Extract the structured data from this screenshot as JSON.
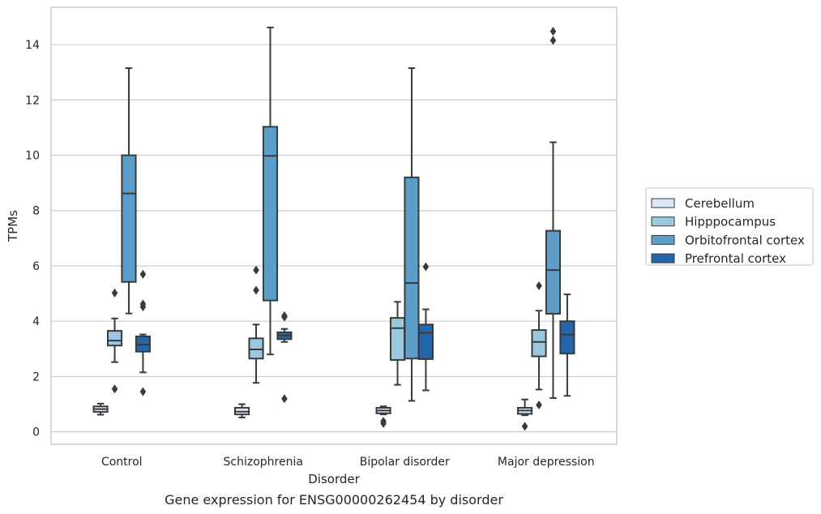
{
  "caption": "Gene expression for ENSG00000262454 by disorder",
  "colors": {
    "Cerebellum": "#dbe9f6",
    "Hipppocampus": "#9ac8e0",
    "Orbitofrontal cortex": "#5a9ec9",
    "Prefrontal cortex": "#2565aa",
    "line": "#3a3a3a",
    "grid": "#cccccc",
    "frame": "#cccccc"
  },
  "chart_data": {
    "type": "box",
    "xlabel": "Disorder",
    "ylabel": "TPMs",
    "ylim": [
      -0.45,
      15.35
    ],
    "yticks": [
      0,
      2,
      4,
      6,
      8,
      10,
      12,
      14
    ],
    "grid": "horizontal",
    "legend_position": "right",
    "categories": [
      "Control",
      "Schizophrenia",
      "Bipolar disorder",
      "Major depression"
    ],
    "series": [
      {
        "name": "Cerebellum",
        "boxes": [
          {
            "whislo": 0.62,
            "q1": 0.72,
            "med": 0.82,
            "q3": 0.92,
            "whishi": 1.02,
            "fliers": []
          },
          {
            "whislo": 0.52,
            "q1": 0.63,
            "med": 0.73,
            "q3": 0.87,
            "whishi": 1.0,
            "fliers": []
          },
          {
            "whislo": 0.63,
            "q1": 0.67,
            "med": 0.77,
            "q3": 0.87,
            "whishi": 0.92,
            "fliers": [
              0.3,
              0.38
            ]
          },
          {
            "whislo": 0.6,
            "q1": 0.65,
            "med": 0.77,
            "q3": 0.87,
            "whishi": 1.17,
            "fliers": [
              0.2
            ]
          }
        ]
      },
      {
        "name": "Hipppocampus",
        "boxes": [
          {
            "whislo": 2.52,
            "q1": 3.12,
            "med": 3.3,
            "q3": 3.65,
            "whishi": 4.1,
            "fliers": [
              5.02,
              1.55
            ]
          },
          {
            "whislo": 1.77,
            "q1": 2.65,
            "med": 2.98,
            "q3": 3.38,
            "whishi": 3.88,
            "fliers": [
              5.85,
              5.12
            ]
          },
          {
            "whislo": 1.7,
            "q1": 2.6,
            "med": 3.75,
            "q3": 4.12,
            "whishi": 4.7,
            "fliers": []
          },
          {
            "whislo": 1.53,
            "q1": 2.73,
            "med": 3.25,
            "q3": 3.68,
            "whishi": 4.38,
            "fliers": [
              5.28,
              0.97
            ]
          }
        ]
      },
      {
        "name": "Orbitofrontal cortex",
        "boxes": [
          {
            "whislo": 4.28,
            "q1": 5.42,
            "med": 8.62,
            "q3": 10.0,
            "whishi": 13.15,
            "fliers": []
          },
          {
            "whislo": 2.8,
            "q1": 4.75,
            "med": 9.98,
            "q3": 11.03,
            "whishi": 14.62,
            "fliers": []
          },
          {
            "whislo": 1.12,
            "q1": 2.65,
            "med": 5.38,
            "q3": 9.2,
            "whishi": 13.15,
            "fliers": []
          },
          {
            "whislo": 1.22,
            "q1": 4.27,
            "med": 5.85,
            "q3": 7.27,
            "whishi": 10.47,
            "fliers": [
              14.48,
              14.15
            ]
          }
        ]
      },
      {
        "name": "Prefrontal cortex",
        "boxes": [
          {
            "whislo": 2.15,
            "q1": 2.9,
            "med": 3.15,
            "q3": 3.45,
            "whishi": 3.52,
            "fliers": [
              5.7,
              4.62,
              4.52,
              1.45
            ]
          },
          {
            "whislo": 3.25,
            "q1": 3.35,
            "med": 3.48,
            "q3": 3.6,
            "whishi": 3.72,
            "fliers": [
              4.2,
              4.15,
              1.2
            ]
          },
          {
            "whislo": 1.5,
            "q1": 2.63,
            "med": 3.58,
            "q3": 3.88,
            "whishi": 4.43,
            "fliers": [
              5.97
            ]
          },
          {
            "whislo": 1.3,
            "q1": 2.83,
            "med": 3.52,
            "q3": 4.0,
            "whishi": 4.97,
            "fliers": []
          }
        ]
      }
    ]
  }
}
